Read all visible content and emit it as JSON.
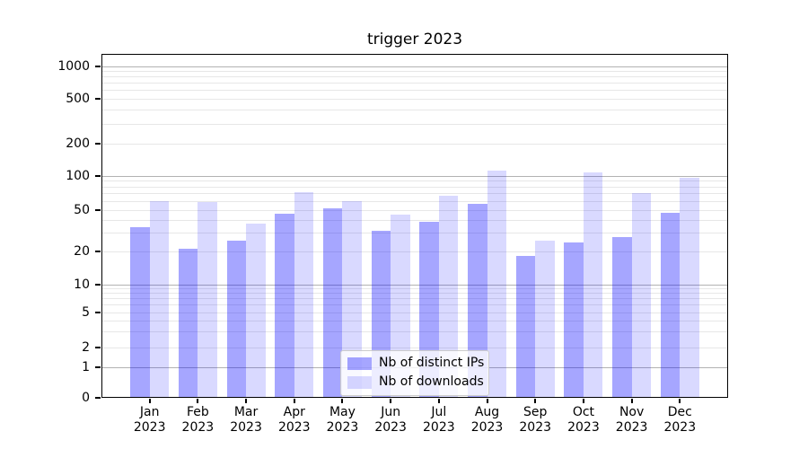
{
  "chart_data": {
    "type": "bar",
    "title": "trigger 2023",
    "categories": [
      "Jan 2023",
      "Feb 2023",
      "Mar 2023",
      "Apr 2023",
      "May 2023",
      "Jun 2023",
      "Jul 2023",
      "Aug 2023",
      "Sep 2023",
      "Oct 2023",
      "Nov 2023",
      "Dec 2023"
    ],
    "x_tick_labels": [
      "Jan\n2023",
      "Feb\n2023",
      "Mar\n2023",
      "Apr\n2023",
      "May\n2023",
      "Jun\n2023",
      "Jul\n2023",
      "Aug\n2023",
      "Sep\n2023",
      "Oct\n2023",
      "Nov\n2023",
      "Dec\n2023"
    ],
    "series": [
      {
        "name": "Nb of distinct IPs",
        "color": "rgba(0,0,255,0.35)",
        "values": [
          34,
          21,
          25,
          46,
          51,
          31,
          38,
          56,
          18,
          24,
          27,
          47
        ]
      },
      {
        "name": "Nb of downloads",
        "color": "rgba(0,0,255,0.15)",
        "values": [
          60,
          58,
          37,
          72,
          59,
          45,
          66,
          112,
          25,
          108,
          70,
          96
        ]
      }
    ],
    "yscale": "symlog",
    "yticks": [
      0,
      1,
      2,
      5,
      10,
      20,
      50,
      100,
      200,
      500,
      1000
    ],
    "ytick_labels": [
      "0",
      "1",
      "2",
      "5",
      "10",
      "20",
      "50",
      "100",
      "200",
      "500",
      "1000"
    ],
    "ylim": [
      0,
      1300
    ],
    "grid": true,
    "legend_position": "lower center",
    "colors": {
      "bar_dark": "rgba(0,0,255,0.35)",
      "bar_light": "rgba(0,0,255,0.15)",
      "grid_major": "#b2b2b2",
      "grid_minor": "#e7e7e7"
    }
  }
}
